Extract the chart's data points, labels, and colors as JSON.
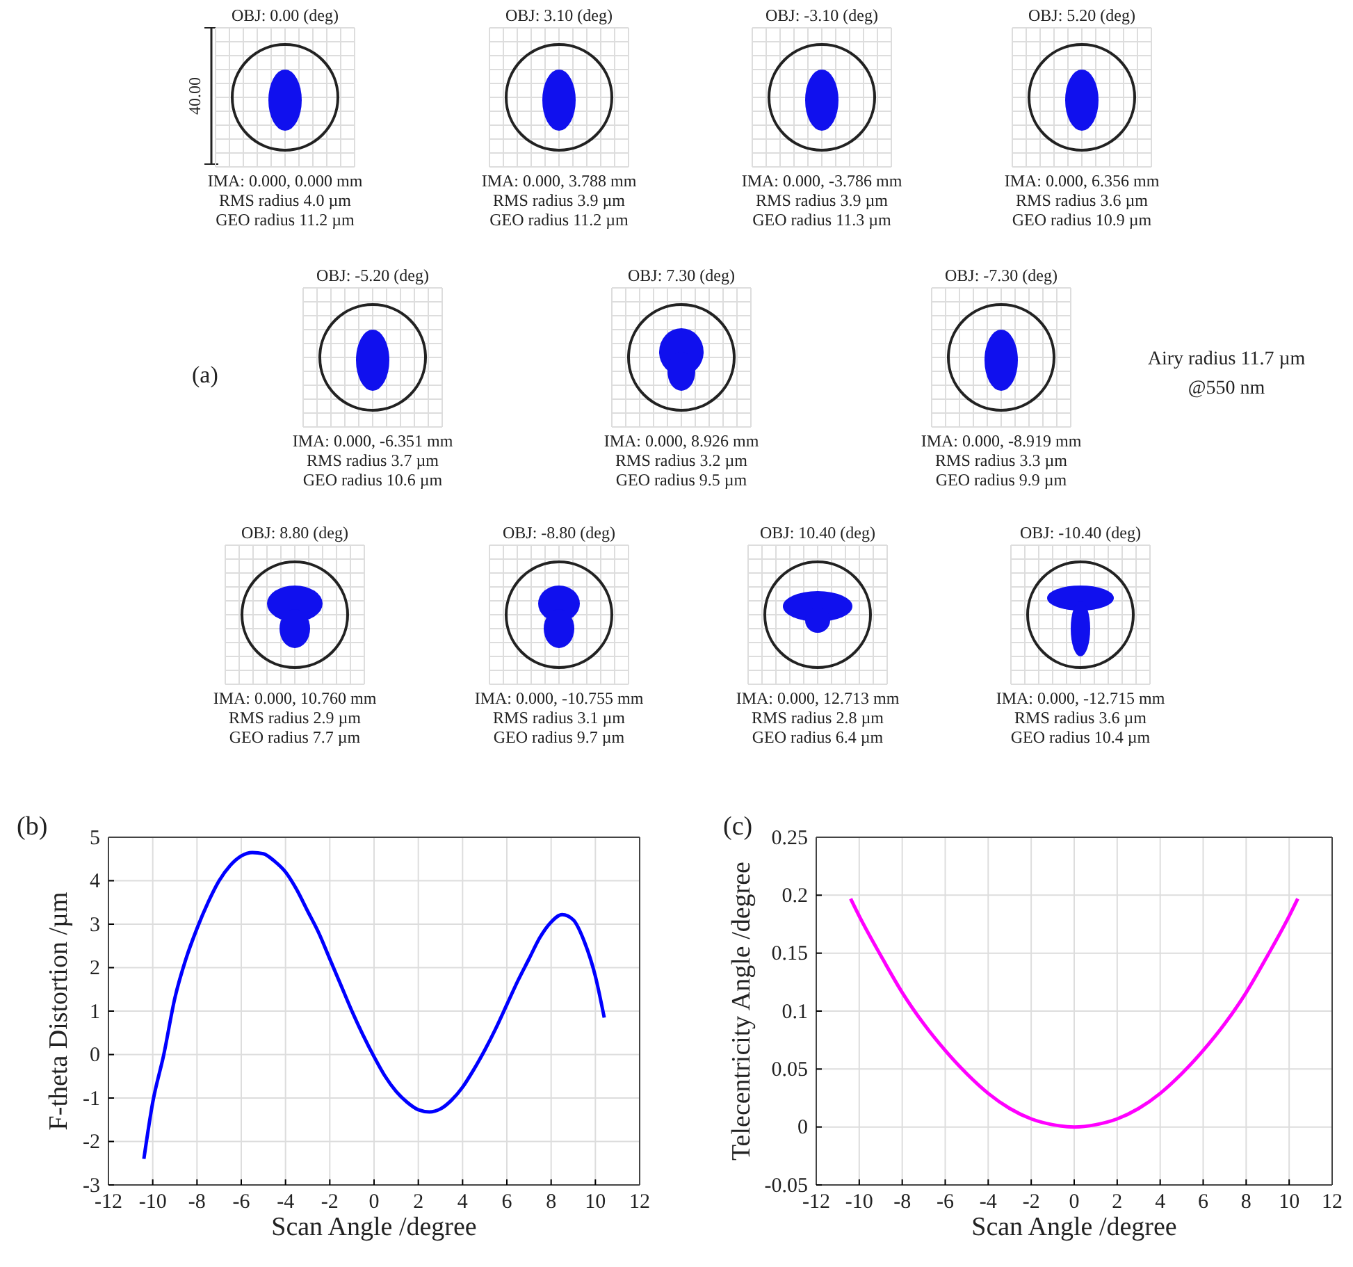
{
  "chart_data": [
    {
      "type": "other",
      "annotations": [
        "(a)",
        "40.00",
        "OBJ: 0.00 (deg)",
        "IMA: 0.000, 0.000 mm",
        "RMS radius 4.0 µm",
        "GEO radius 11.2 µm",
        "OBJ: 3.10 (deg)",
        "IMA: 0.000, 3.788 mm",
        "RMS radius 3.9 µm",
        "GEO radius 11.2 µm",
        "OBJ: -3.10 (deg)",
        "IMA: 0.000, -3.786 mm",
        "RMS radius 3.9 µm",
        "GEO radius 11.3 µm",
        "OBJ: 5.20 (deg)",
        "IMA: 0.000, 6.356 mm",
        "RMS radius 3.6 µm",
        "GEO radius 10.9 µm",
        "OBJ: -5.20 (deg)",
        "IMA: 0.000, -6.351 mm",
        "RMS radius 3.7 µm",
        "GEO radius 10.6 µm",
        "OBJ: 7.30 (deg)",
        "IMA: 0.000, 8.926 mm",
        "RMS radius 3.2 µm",
        "GEO radius 9.5 µm",
        "OBJ: -7.30 (deg)",
        "IMA: 0.000, -8.919 mm",
        "RMS radius 3.3 µm",
        "GEO radius 9.9 µm",
        "OBJ: 8.80 (deg)",
        "IMA: 0.000, 10.760 mm",
        "RMS radius 2.9 µm",
        "GEO radius 7.7 µm",
        "OBJ: -8.80 (deg)",
        "IMA: 0.000, -10.755 mm",
        "RMS radius 3.1 µm",
        "GEO radius 9.7 µm",
        "OBJ: 10.40 (deg)",
        "IMA: 0.000, 12.713 mm",
        "RMS radius 2.8 µm",
        "GEO radius 6.4 µm",
        "OBJ: -10.40 (deg)",
        "IMA: 0.000, -12.715 mm",
        "RMS radius 3.6 µm",
        "GEO radius 10.4 µm",
        "Airy radius 11.7 µm",
        "@550 nm"
      ]
    },
    {
      "type": "line",
      "annotations": [
        "(b)"
      ],
      "xlabel": "Scan Angle /degree",
      "ylabel": "F-theta Distortion /µm",
      "xlim": [
        -12,
        12
      ],
      "xticks": [
        -12,
        -10,
        -8,
        -6,
        -4,
        -2,
        0,
        2,
        4,
        6,
        8,
        10,
        12
      ],
      "ylim": [
        -3,
        5
      ],
      "yticks": [
        -3,
        -2,
        -1,
        0,
        1,
        2,
        3,
        4,
        5
      ],
      "grid": true,
      "x": [
        -10.4,
        -10,
        -9.5,
        -9,
        -8.5,
        -8,
        -7.5,
        -7,
        -6.5,
        -6,
        -5.5,
        -5,
        -4.5,
        -4,
        -3.5,
        -3,
        -2.5,
        -2,
        -1.5,
        -1,
        -0.5,
        0,
        0.5,
        1,
        1.5,
        2,
        2.5,
        3,
        3.5,
        4,
        4.5,
        5,
        5.5,
        6,
        6.5,
        7,
        7.5,
        8,
        8.5,
        9,
        9.5,
        10,
        10.4
      ],
      "series": [
        {
          "color": "#0000ff",
          "values": [
            -2.4,
            -1.1,
            0.0,
            1.3,
            2.2,
            2.9,
            3.5,
            4.0,
            4.35,
            4.57,
            4.65,
            4.62,
            4.45,
            4.2,
            3.8,
            3.3,
            2.8,
            2.2,
            1.6,
            1.0,
            0.45,
            -0.05,
            -0.5,
            -0.85,
            -1.1,
            -1.27,
            -1.32,
            -1.25,
            -1.05,
            -0.75,
            -0.35,
            0.1,
            0.6,
            1.15,
            1.7,
            2.2,
            2.7,
            3.05,
            3.22,
            3.1,
            2.6,
            1.8,
            0.85
          ]
        }
      ]
    },
    {
      "type": "line",
      "annotations": [
        "(c)"
      ],
      "xlabel": "Scan Angle /degree",
      "ylabel": "Telecentricity Angle /degree",
      "xlim": [
        -12,
        12
      ],
      "xticks": [
        -12,
        -10,
        -8,
        -6,
        -4,
        -2,
        0,
        2,
        4,
        6,
        8,
        10,
        12
      ],
      "ylim": [
        -0.05,
        0.25
      ],
      "yticks": [
        -0.05,
        0,
        0.05,
        0.1,
        0.15,
        0.2,
        0.25
      ],
      "grid": true,
      "x": [
        -10.4,
        -10,
        -9,
        -8,
        -7,
        -6,
        -5,
        -4,
        -3,
        -2,
        -1,
        0,
        1,
        2,
        3,
        4,
        5,
        6,
        7,
        8,
        9,
        10,
        10.4
      ],
      "series": [
        {
          "color": "#ff00ff",
          "values": [
            0.197,
            0.182,
            0.148,
            0.116,
            0.089,
            0.066,
            0.046,
            0.029,
            0.016,
            0.007,
            0.002,
            0,
            0.002,
            0.007,
            0.016,
            0.029,
            0.046,
            0.066,
            0.089,
            0.116,
            0.148,
            0.182,
            0.197
          ]
        }
      ]
    }
  ]
}
